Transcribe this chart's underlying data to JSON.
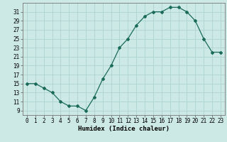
{
  "x": [
    0,
    1,
    2,
    3,
    4,
    5,
    6,
    7,
    8,
    9,
    10,
    11,
    12,
    13,
    14,
    15,
    16,
    17,
    18,
    19,
    20,
    21,
    22,
    23
  ],
  "y": [
    15,
    15,
    14,
    13,
    11,
    10,
    10,
    9,
    12,
    16,
    19,
    23,
    25,
    28,
    30,
    31,
    31,
    32,
    32,
    31,
    29,
    25,
    22,
    22
  ],
  "line_color": "#1a6b5a",
  "marker": "D",
  "marker_size": 2.0,
  "bg_color": "#cce9e5",
  "grid_color": "#aed4cf",
  "xlabel": "Humidex (Indice chaleur)",
  "ylim": [
    8,
    33
  ],
  "xlim": [
    -0.5,
    23.5
  ],
  "yticks": [
    9,
    11,
    13,
    15,
    17,
    19,
    21,
    23,
    25,
    27,
    29,
    31
  ],
  "xticks": [
    0,
    1,
    2,
    3,
    4,
    5,
    6,
    7,
    8,
    9,
    10,
    11,
    12,
    13,
    14,
    15,
    16,
    17,
    18,
    19,
    20,
    21,
    22,
    23
  ],
  "label_fontsize": 6.5,
  "tick_fontsize": 5.5,
  "linewidth": 0.9
}
